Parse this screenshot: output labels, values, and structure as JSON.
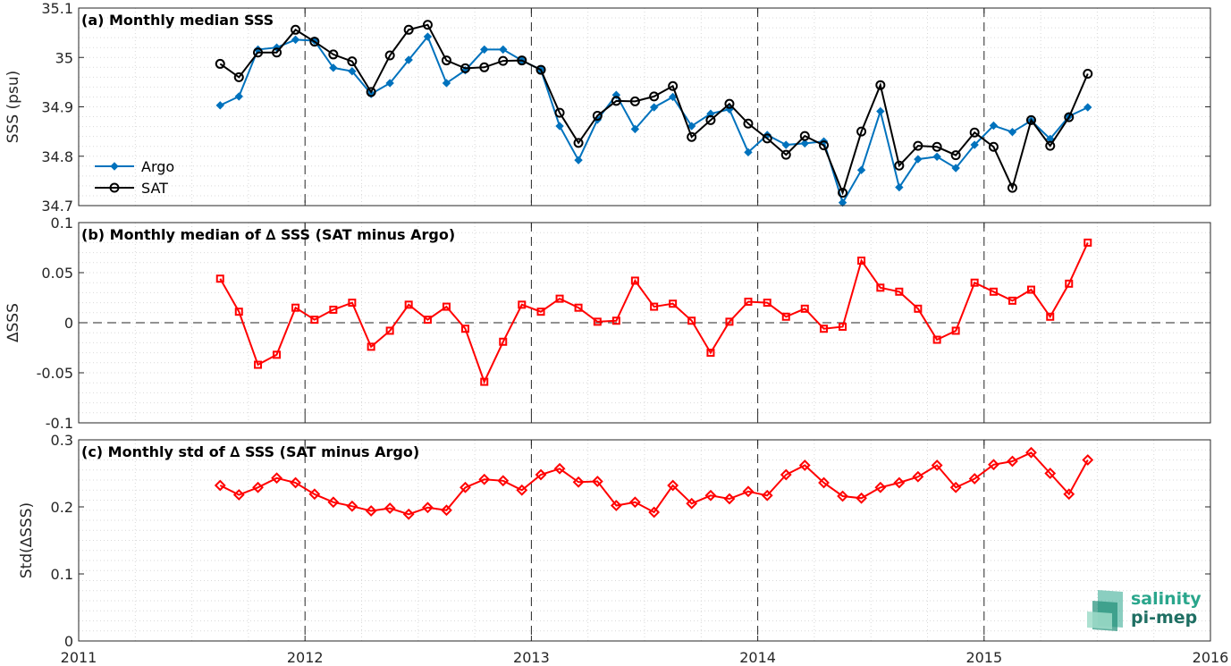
{
  "x_ticks": [
    "2011",
    "2012",
    "2013",
    "2014",
    "2015",
    "2016"
  ],
  "colors": {
    "argo": "#0072BD",
    "sat": "#000000",
    "delta": "#FF0000",
    "logo_top": "#2aa68c",
    "logo_bottom": "#1f6f63"
  },
  "logo": {
    "line1": "salinity",
    "line2": "pi-mep"
  },
  "chart_data": [
    {
      "type": "line",
      "title": "(a) Monthly median SSS",
      "ylabel": "SSS (psu)",
      "xlabel": "",
      "xlim": [
        2011,
        2016
      ],
      "ylim": [
        34.7,
        35.1
      ],
      "yticks": [
        "34.7",
        "34.8",
        "34.9",
        "35",
        "35.1"
      ],
      "grid": true,
      "legend": "bottom-left",
      "x": [
        2011.625,
        2011.708,
        2011.792,
        2011.875,
        2011.958,
        2012.042,
        2012.125,
        2012.208,
        2012.292,
        2012.375,
        2012.458,
        2012.542,
        2012.625,
        2012.708,
        2012.792,
        2012.875,
        2012.958,
        2013.042,
        2013.125,
        2013.208,
        2013.292,
        2013.375,
        2013.458,
        2013.542,
        2013.625,
        2013.708,
        2013.792,
        2013.875,
        2013.958,
        2014.042,
        2014.125,
        2014.208,
        2014.292,
        2014.375,
        2014.458,
        2014.542,
        2014.625,
        2014.708,
        2014.792,
        2014.875,
        2014.958,
        2015.042,
        2015.125,
        2015.208,
        2015.292,
        2015.375,
        2015.458
      ],
      "series": [
        {
          "name": "Argo",
          "values": [
            34.903,
            34.921,
            35.016,
            35.02,
            35.036,
            35.034,
            34.979,
            34.972,
            34.926,
            34.948,
            34.995,
            35.042,
            34.948,
            34.974,
            35.016,
            35.016,
            34.994,
            34.975,
            34.861,
            34.792,
            34.874,
            34.924,
            34.855,
            34.899,
            34.92,
            34.861,
            34.886,
            34.895,
            34.808,
            34.843,
            34.823,
            34.826,
            34.83,
            34.706,
            34.772,
            34.891,
            34.737,
            34.794,
            34.799,
            34.776,
            34.823,
            34.862,
            34.849,
            34.872,
            34.835,
            34.881,
            34.899
          ],
          "marker": "diamond-filled"
        },
        {
          "name": "SAT",
          "values": [
            34.987,
            34.96,
            35.01,
            35.01,
            35.056,
            35.032,
            35.006,
            34.992,
            34.93,
            35.004,
            35.056,
            35.066,
            34.994,
            34.978,
            34.98,
            34.993,
            34.994,
            34.975,
            34.888,
            34.827,
            34.882,
            34.912,
            34.911,
            34.921,
            34.942,
            34.839,
            34.873,
            34.906,
            34.866,
            34.836,
            34.803,
            34.841,
            34.822,
            34.726,
            34.85,
            34.944,
            34.781,
            34.821,
            34.819,
            34.802,
            34.848,
            34.819,
            34.736,
            34.873,
            34.821,
            34.879,
            34.967
          ],
          "marker": "circle-open"
        }
      ]
    },
    {
      "type": "line",
      "title": "(b) Monthly median of ∆ SSS (SAT minus Argo)",
      "ylabel": "∆SSS",
      "xlabel": "",
      "xlim": [
        2011,
        2016
      ],
      "ylim": [
        -0.1,
        0.1
      ],
      "yticks": [
        "-0.1",
        "-0.05",
        "0",
        "0.05",
        "0.1"
      ],
      "grid": true,
      "zero_line": true,
      "x": [
        2011.625,
        2011.708,
        2011.792,
        2011.875,
        2011.958,
        2012.042,
        2012.125,
        2012.208,
        2012.292,
        2012.375,
        2012.458,
        2012.542,
        2012.625,
        2012.708,
        2012.792,
        2012.875,
        2012.958,
        2013.042,
        2013.125,
        2013.208,
        2013.292,
        2013.375,
        2013.458,
        2013.542,
        2013.625,
        2013.708,
        2013.792,
        2013.875,
        2013.958,
        2014.042,
        2014.125,
        2014.208,
        2014.292,
        2014.375,
        2014.458,
        2014.542,
        2014.625,
        2014.708,
        2014.792,
        2014.875,
        2014.958,
        2015.042,
        2015.125,
        2015.208,
        2015.292,
        2015.375,
        2015.458
      ],
      "series": [
        {
          "values": [
            0.044,
            0.011,
            -0.042,
            -0.032,
            0.015,
            0.003,
            0.013,
            0.02,
            -0.024,
            -0.008,
            0.018,
            0.003,
            0.016,
            -0.006,
            -0.059,
            -0.019,
            0.018,
            0.011,
            0.024,
            0.015,
            0.001,
            0.002,
            0.042,
            0.016,
            0.019,
            0.002,
            -0.03,
            0.001,
            0.021,
            0.02,
            0.006,
            0.014,
            -0.006,
            -0.004,
            0.062,
            0.035,
            0.031,
            0.014,
            -0.017,
            -0.008,
            0.04,
            0.031,
            0.022,
            0.033,
            0.006,
            0.039,
            0.08
          ],
          "marker": "square-open"
        }
      ]
    },
    {
      "type": "line",
      "title": "(c) Monthly std of ∆ SSS (SAT minus Argo)",
      "ylabel": "Std(∆SSS)",
      "xlabel": "",
      "xlim": [
        2011,
        2016
      ],
      "ylim": [
        0,
        0.3
      ],
      "yticks": [
        "0",
        "0.1",
        "0.2",
        "0.3"
      ],
      "grid": true,
      "x": [
        2011.625,
        2011.708,
        2011.792,
        2011.875,
        2011.958,
        2012.042,
        2012.125,
        2012.208,
        2012.292,
        2012.375,
        2012.458,
        2012.542,
        2012.625,
        2012.708,
        2012.792,
        2012.875,
        2012.958,
        2013.042,
        2013.125,
        2013.208,
        2013.292,
        2013.375,
        2013.458,
        2013.542,
        2013.625,
        2013.708,
        2013.792,
        2013.875,
        2013.958,
        2014.042,
        2014.125,
        2014.208,
        2014.292,
        2014.375,
        2014.458,
        2014.542,
        2014.625,
        2014.708,
        2014.792,
        2014.875,
        2014.958,
        2015.042,
        2015.125,
        2015.208,
        2015.292,
        2015.375,
        2015.458
      ],
      "series": [
        {
          "values": [
            0.232,
            0.218,
            0.229,
            0.243,
            0.236,
            0.219,
            0.207,
            0.201,
            0.194,
            0.198,
            0.189,
            0.199,
            0.195,
            0.229,
            0.241,
            0.239,
            0.225,
            0.248,
            0.257,
            0.237,
            0.238,
            0.202,
            0.207,
            0.192,
            0.232,
            0.205,
            0.217,
            0.212,
            0.223,
            0.217,
            0.248,
            0.262,
            0.236,
            0.216,
            0.213,
            0.229,
            0.236,
            0.245,
            0.262,
            0.229,
            0.242,
            0.263,
            0.268,
            0.281,
            0.25,
            0.219,
            0.27
          ],
          "marker": "diamond-open"
        }
      ]
    }
  ]
}
